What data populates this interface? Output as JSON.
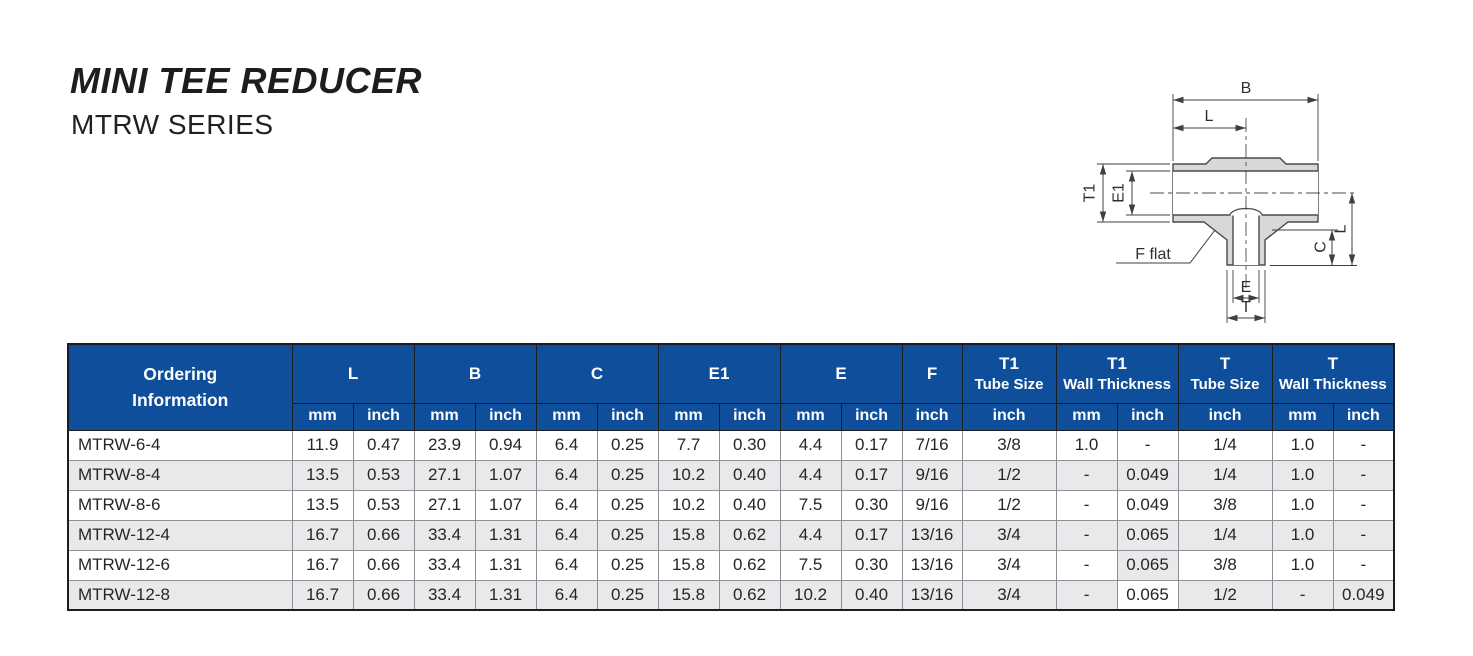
{
  "page": {
    "title": "MINI TEE REDUCER",
    "subtitle": "MTRW SERIES"
  },
  "colors": {
    "header_blue": "#0e4e9b",
    "row_alt": "#e9e9eb",
    "table_border_dark": "#1a1d22",
    "cell_border": "#8e8e94",
    "body_text": "#262626",
    "diagram_fill": "#d8d8d8",
    "diagram_line": "#4a4a4a"
  },
  "diagram": {
    "labels": {
      "b": "B",
      "l_top": "L",
      "t1": "T1",
      "e1": "E1",
      "f_flat": "F flat",
      "c": "C",
      "l_right": "L",
      "e": "E",
      "t": "T"
    }
  },
  "table": {
    "header": {
      "ordering": "Ordering\nInformation",
      "groups": [
        {
          "label": "L",
          "units": [
            "mm",
            "inch"
          ]
        },
        {
          "label": "B",
          "units": [
            "mm",
            "inch"
          ]
        },
        {
          "label": "C",
          "units": [
            "mm",
            "inch"
          ]
        },
        {
          "label": "E1",
          "units": [
            "mm",
            "inch"
          ]
        },
        {
          "label": "E",
          "units": [
            "mm",
            "inch"
          ]
        },
        {
          "label": "F",
          "units": [
            "inch"
          ]
        },
        {
          "label": "T1",
          "sublabel": "Tube Size",
          "units": [
            "inch"
          ]
        },
        {
          "label": "T1",
          "sublabel": "Wall Thickness",
          "units": [
            "mm",
            "inch"
          ]
        },
        {
          "label": "T",
          "sublabel": "Tube Size",
          "units": [
            "inch"
          ]
        },
        {
          "label": "T",
          "sublabel": "Wall Thickness",
          "units": [
            "mm",
            "inch"
          ]
        }
      ]
    },
    "rows": [
      {
        "model": "MTRW-6-4",
        "values": [
          "11.9",
          "0.47",
          "23.9",
          "0.94",
          "6.4",
          "0.25",
          "7.7",
          "0.30",
          "4.4",
          "0.17",
          "7/16",
          "3/8",
          "1.0",
          "-",
          "1/4",
          "1.0",
          "-"
        ]
      },
      {
        "model": "MTRW-8-4",
        "values": [
          "13.5",
          "0.53",
          "27.1",
          "1.07",
          "6.4",
          "0.25",
          "10.2",
          "0.40",
          "4.4",
          "0.17",
          "9/16",
          "1/2",
          "-",
          "0.049",
          "1/4",
          "1.0",
          "-"
        ]
      },
      {
        "model": "MTRW-8-6",
        "values": [
          "13.5",
          "0.53",
          "27.1",
          "1.07",
          "6.4",
          "0.25",
          "10.2",
          "0.40",
          "7.5",
          "0.30",
          "9/16",
          "1/2",
          "-",
          "0.049",
          "3/8",
          "1.0",
          "-"
        ]
      },
      {
        "model": "MTRW-12-4",
        "values": [
          "16.7",
          "0.66",
          "33.4",
          "1.31",
          "6.4",
          "0.25",
          "15.8",
          "0.62",
          "4.4",
          "0.17",
          "13/16",
          "3/4",
          "-",
          "0.065",
          "1/4",
          "1.0",
          "-"
        ]
      },
      {
        "model": "MTRW-12-6",
        "values": [
          "16.7",
          "0.66",
          "33.4",
          "1.31",
          "6.4",
          "0.25",
          "15.8",
          "0.62",
          "7.5",
          "0.30",
          "13/16",
          "3/4",
          "-",
          "0.065",
          "3/8",
          "1.0",
          "-"
        ]
      },
      {
        "model": "MTRW-12-8",
        "values": [
          "16.7",
          "0.66",
          "33.4",
          "1.31",
          "6.4",
          "0.25",
          "15.8",
          "0.62",
          "10.2",
          "0.40",
          "13/16",
          "3/4",
          "-",
          "0.065",
          "1/2",
          "-",
          "0.049"
        ]
      }
    ]
  }
}
